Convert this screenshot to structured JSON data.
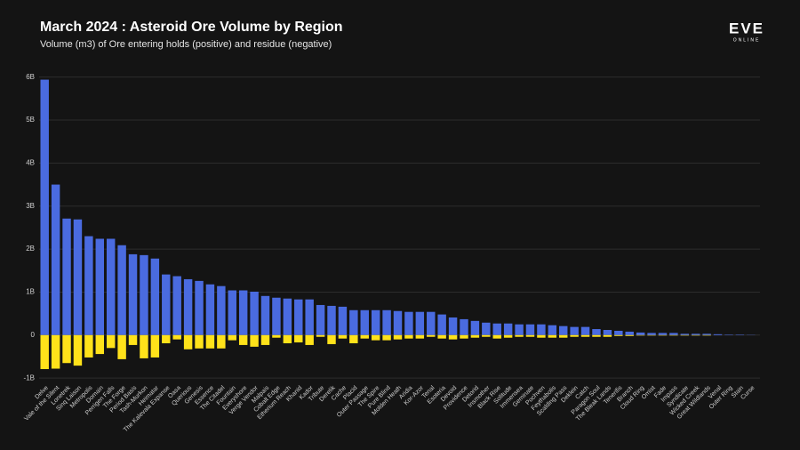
{
  "chart_data": {
    "type": "bar",
    "stacked": true,
    "title": "March 2024 : Asteroid Ore Volume by Region",
    "subtitle": "Volume (m3) of Ore entering holds (positive) and residue (negative)",
    "logo": "EVE",
    "logo_sub": "ONLINE",
    "categories": [
      "Delve",
      "Vale of the Silent",
      "Lonetrek",
      "Sinq Laison",
      "Metropolis",
      "Domain",
      "Perrigen Falls",
      "The Forge",
      "Period Basis",
      "Tash-Murkon",
      "Heimatar",
      "The Kalevala Expanse",
      "Oasa",
      "Querious",
      "Genesis",
      "Essence",
      "The Citadel",
      "Fountain",
      "Everyshore",
      "Verge Vendor",
      "Malpais",
      "Cobalt Edge",
      "Etherium Reach",
      "Khanid",
      "Kador",
      "Tribute",
      "Derelik",
      "Cache",
      "Placid",
      "Outer Passage",
      "The Spire",
      "Pure Blind",
      "Molden Heath",
      "Aridia",
      "Kor-Azor",
      "Tenal",
      "Esoteria",
      "Devoid",
      "Providence",
      "Detorid",
      "Insmother",
      "Black Rise",
      "Solitude",
      "Immensea",
      "Geminate",
      "Pochven",
      "Feythabolis",
      "Scalding Pass",
      "Deklein",
      "Catch",
      "Paragon Soul",
      "The Bleak Lands",
      "Tenerifis",
      "Branch",
      "Cloud Ring",
      "Omist",
      "Fade",
      "Impass",
      "Syndicate",
      "Wicked Creek",
      "Great Wildlands",
      "Venal",
      "Outer Ring",
      "Stain",
      "Curse"
    ],
    "series": [
      {
        "color": "#4a6be0",
        "values": [
          5.94,
          3.5,
          2.71,
          2.69,
          2.3,
          2.24,
          2.24,
          2.09,
          1.88,
          1.86,
          1.78,
          1.41,
          1.37,
          1.3,
          1.26,
          1.18,
          1.14,
          1.04,
          1.04,
          1.01,
          0.91,
          0.87,
          0.85,
          0.83,
          0.83,
          0.7,
          0.68,
          0.66,
          0.58,
          0.58,
          0.58,
          0.58,
          0.56,
          0.54,
          0.54,
          0.54,
          0.48,
          0.41,
          0.37,
          0.33,
          0.29,
          0.27,
          0.27,
          0.25,
          0.25,
          0.25,
          0.23,
          0.21,
          0.19,
          0.19,
          0.14,
          0.12,
          0.1,
          0.08,
          0.06,
          0.05,
          0.05,
          0.05,
          0.03,
          0.03,
          0.03,
          0.02,
          0.01,
          0.01,
          0.005
        ]
      },
      {
        "color": "#ffe21a",
        "values": [
          -0.79,
          -0.78,
          -0.65,
          -0.71,
          -0.52,
          -0.44,
          -0.3,
          -0.56,
          -0.23,
          -0.54,
          -0.52,
          -0.19,
          -0.1,
          -0.33,
          -0.31,
          -0.31,
          -0.31,
          -0.12,
          -0.23,
          -0.27,
          -0.23,
          -0.06,
          -0.19,
          -0.17,
          -0.23,
          -0.04,
          -0.21,
          -0.08,
          -0.19,
          -0.08,
          -0.12,
          -0.12,
          -0.1,
          -0.08,
          -0.08,
          -0.04,
          -0.08,
          -0.1,
          -0.08,
          -0.06,
          -0.04,
          -0.08,
          -0.06,
          -0.04,
          -0.04,
          -0.06,
          -0.06,
          -0.06,
          -0.04,
          -0.04,
          -0.04,
          -0.04,
          -0.02,
          -0.02,
          -0.01,
          -0.01,
          -0.01,
          -0.01,
          -0.01,
          -0.01,
          -0.01,
          0,
          0,
          0,
          0
        ]
      }
    ],
    "ylim": [
      -1.1,
      6.2
    ],
    "yticks": [
      {
        "value": -1,
        "label": "-1B"
      },
      {
        "value": 0,
        "label": "0"
      },
      {
        "value": 1,
        "label": "1B"
      },
      {
        "value": 2,
        "label": "2B"
      },
      {
        "value": 3,
        "label": "3B"
      },
      {
        "value": 4,
        "label": "4B"
      },
      {
        "value": 5,
        "label": "5B"
      },
      {
        "value": 6,
        "label": "6B"
      }
    ],
    "grid": true
  }
}
